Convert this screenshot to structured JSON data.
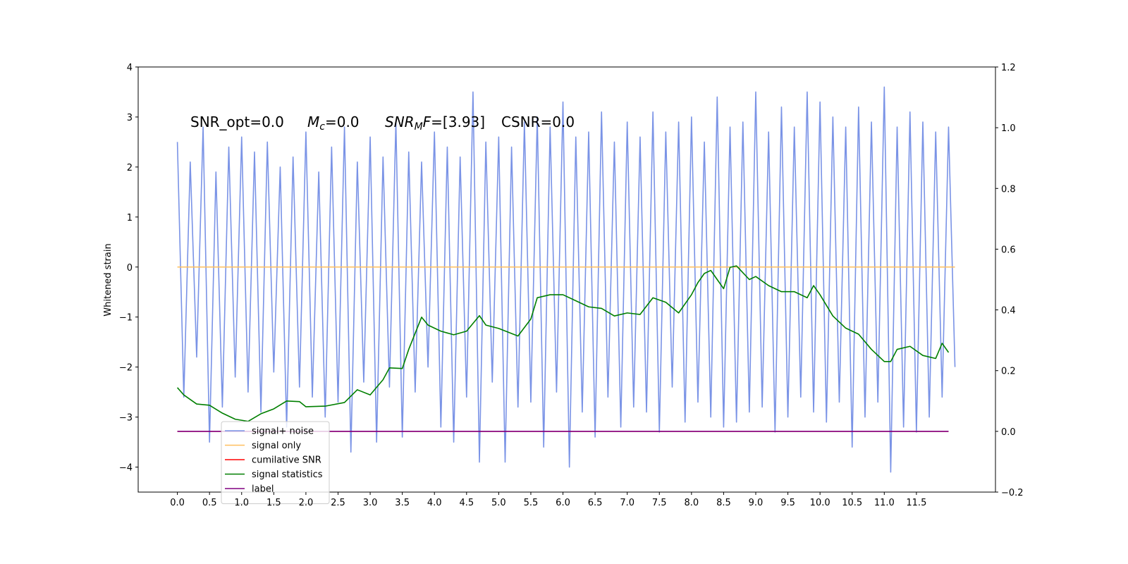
{
  "chart_data": {
    "type": "line",
    "ylabel": "Whitened strain",
    "annotations": [
      [
        {
          "text": "SNR_opt=0.0"
        }
      ],
      [
        {
          "text": "M",
          "italic": true
        },
        {
          "text": "c",
          "italic": true,
          "sub": true
        },
        {
          "text": "=0.0"
        }
      ],
      [
        {
          "text": "SNR",
          "italic": true
        },
        {
          "text": "M",
          "italic": true,
          "sub": true
        },
        {
          "text": "F",
          "italic": true
        },
        {
          "text": "=[3.93]"
        }
      ],
      [
        {
          "text": "CSNR=0.0"
        }
      ]
    ],
    "xlim": [
      -0.61,
      12.73
    ],
    "ylim": [
      -4.5,
      4
    ],
    "y2lim": [
      -0.2,
      1.2
    ],
    "xticks": [
      {
        "value": 0,
        "label": "0.0"
      },
      {
        "value": 0.5,
        "label": "0.5"
      },
      {
        "value": 1,
        "label": "1.0"
      },
      {
        "value": 1.5,
        "label": "1.5"
      },
      {
        "value": 2,
        "label": "2.0"
      },
      {
        "value": 2.5,
        "label": "2.5"
      },
      {
        "value": 3,
        "label": "3.0"
      },
      {
        "value": 3.5,
        "label": "3.5"
      },
      {
        "value": 4,
        "label": "4.0"
      },
      {
        "value": 4.5,
        "label": "4.5"
      },
      {
        "value": 5,
        "label": "5.0"
      },
      {
        "value": 5.5,
        "label": "5.5"
      },
      {
        "value": 6,
        "label": "6.0"
      },
      {
        "value": 6.5,
        "label": "6.5"
      },
      {
        "value": 7,
        "label": "7.0"
      },
      {
        "value": 7.5,
        "label": "7.5"
      },
      {
        "value": 8,
        "label": "8.0"
      },
      {
        "value": 8.5,
        "label": "8.5"
      },
      {
        "value": 9,
        "label": "9.0"
      },
      {
        "value": 9.5,
        "label": "9.5"
      },
      {
        "value": 10,
        "label": "10.0"
      },
      {
        "value": 10.5,
        "label": "10.5"
      },
      {
        "value": 11,
        "label": "11.0"
      },
      {
        "value": 11.5,
        "label": "11.5"
      }
    ],
    "yticks": [
      {
        "value": -4,
        "label": "−4"
      },
      {
        "value": -3,
        "label": "−3"
      },
      {
        "value": -2,
        "label": "−2"
      },
      {
        "value": -1,
        "label": "−1"
      },
      0,
      1,
      2,
      3,
      4
    ],
    "y2ticks": [
      {
        "value": -0.2,
        "label": "−0.2"
      },
      {
        "value": 0,
        "label": "0.0"
      },
      {
        "value": 0.2,
        "label": "0.2"
      },
      {
        "value": 0.4,
        "label": "0.4"
      },
      {
        "value": 0.6,
        "label": "0.6"
      },
      {
        "value": 0.8,
        "label": "0.8"
      },
      {
        "value": 1,
        "label": "1.0"
      },
      {
        "value": 1.2,
        "label": "1.2"
      }
    ],
    "legend": "lower left",
    "series": [
      {
        "name": "signal+ noise",
        "color": "#7a93e6",
        "x": [
          0,
          0.1,
          0.2,
          0.3,
          0.4,
          0.5,
          0.6,
          0.7,
          0.8,
          0.9,
          1,
          1.1,
          1.2,
          1.3,
          1.4,
          1.5,
          1.6,
          1.7,
          1.8,
          1.9,
          2,
          2.1,
          2.2,
          2.3,
          2.4,
          2.5,
          2.6,
          2.7,
          2.8,
          2.9,
          3,
          3.1,
          3.2,
          3.3,
          3.4,
          3.5,
          3.6,
          3.7,
          3.8,
          3.9,
          4,
          4.1,
          4.2,
          4.3,
          4.4,
          4.5,
          4.6,
          4.7,
          4.8,
          4.9,
          5,
          5.1,
          5.2,
          5.3,
          5.4,
          5.5,
          5.6,
          5.7,
          5.8,
          5.9,
          6,
          6.1,
          6.2,
          6.3,
          6.4,
          6.5,
          6.6,
          6.7,
          6.8,
          6.9,
          7,
          7.1,
          7.2,
          7.3,
          7.4,
          7.5,
          7.6,
          7.7,
          7.8,
          7.9,
          8,
          8.1,
          8.2,
          8.3,
          8.4,
          8.5,
          8.6,
          8.7,
          8.8,
          8.9,
          9,
          9.1,
          9.2,
          9.3,
          9.4,
          9.5,
          9.6,
          9.7,
          9.8,
          9.9,
          10,
          10.1,
          10.2,
          10.3,
          10.4,
          10.5,
          10.6,
          10.7,
          10.8,
          10.9,
          11,
          11.1,
          11.2,
          11.3,
          11.4,
          11.5,
          11.6,
          11.7,
          11.8,
          11.9,
          12,
          12.1
        ],
        "values": [
          2.5,
          -2.6,
          2.1,
          -1.8,
          2.8,
          -3.5,
          1.9,
          -2.8,
          2.4,
          -2.2,
          2.6,
          -2.5,
          2.3,
          -2.9,
          2.5,
          -2.1,
          2.0,
          -3.2,
          2.2,
          -2.4,
          2.7,
          -2.6,
          1.9,
          -3.0,
          2.4,
          -2.7,
          2.8,
          -3.7,
          2.1,
          -2.3,
          2.6,
          -3.5,
          2.2,
          -2.4,
          2.9,
          -3.4,
          2.3,
          -2.5,
          2.1,
          -2.0,
          2.7,
          -3.2,
          2.4,
          -3.5,
          2.2,
          -2.6,
          3.5,
          -3.9,
          2.5,
          -2.3,
          2.6,
          -3.9,
          2.4,
          -2.8,
          2.9,
          -2.7,
          3.0,
          -3.6,
          2.8,
          -2.5,
          3.3,
          -4.0,
          2.6,
          -2.9,
          2.7,
          -3.4,
          3.1,
          -2.6,
          2.5,
          -3.2,
          2.9,
          -2.8,
          2.6,
          -2.9,
          3.1,
          -3.3,
          2.7,
          -2.4,
          2.9,
          -3.1,
          3.0,
          -2.7,
          2.5,
          -3.0,
          3.4,
          -3.2,
          2.8,
          -3.1,
          2.9,
          -2.9,
          3.5,
          -2.8,
          2.7,
          -3.3,
          3.2,
          -3.0,
          2.8,
          -2.6,
          3.5,
          -2.9,
          3.3,
          -3.1,
          3.0,
          -2.7,
          2.8,
          -3.6,
          3.2,
          -3.0,
          2.9,
          -2.7,
          3.6,
          -4.1,
          2.8,
          -3.2,
          3.1,
          -3.3,
          2.9,
          -3.0,
          2.7,
          -2.6,
          2.8,
          -2.0
        ]
      },
      {
        "name": "signal only",
        "color": "#ffbf5e",
        "x": [
          0,
          12.1
        ],
        "values": [
          0,
          0
        ]
      },
      {
        "name": "cumilative SNR",
        "color": "#ff0000",
        "axis": "y2",
        "x": [
          0,
          12.0
        ],
        "values": [
          0,
          0
        ]
      },
      {
        "name": "signal statistics",
        "color": "#007f00",
        "axis": "y2",
        "x": [
          0,
          0.1,
          0.3,
          0.5,
          0.7,
          0.9,
          1.1,
          1.3,
          1.5,
          1.7,
          1.9,
          2.0,
          2.3,
          2.6,
          2.8,
          3.0,
          3.2,
          3.3,
          3.5,
          3.6,
          3.8,
          3.9,
          4.1,
          4.3,
          4.5,
          4.7,
          4.8,
          5.0,
          5.3,
          5.5,
          5.6,
          5.8,
          6.0,
          6.2,
          6.4,
          6.6,
          6.8,
          7.0,
          7.2,
          7.4,
          7.6,
          7.8,
          8.0,
          8.1,
          8.2,
          8.3,
          8.4,
          8.5,
          8.6,
          8.7,
          8.9,
          9.0,
          9.2,
          9.4,
          9.6,
          9.8,
          9.9,
          10.0,
          10.2,
          10.4,
          10.6,
          10.8,
          11.0,
          11.1,
          11.2,
          11.4,
          11.6,
          11.8,
          11.9,
          12.0
        ],
        "values": [
          0.144,
          0.12,
          0.09,
          0.086,
          0.06,
          0.04,
          0.033,
          0.058,
          0.074,
          0.1,
          0.098,
          0.081,
          0.083,
          0.095,
          0.137,
          0.12,
          0.17,
          0.209,
          0.207,
          0.27,
          0.376,
          0.35,
          0.33,
          0.318,
          0.33,
          0.381,
          0.35,
          0.339,
          0.314,
          0.37,
          0.44,
          0.45,
          0.45,
          0.43,
          0.41,
          0.405,
          0.38,
          0.39,
          0.385,
          0.44,
          0.425,
          0.39,
          0.45,
          0.49,
          0.52,
          0.53,
          0.5,
          0.47,
          0.54,
          0.545,
          0.5,
          0.51,
          0.48,
          0.46,
          0.46,
          0.44,
          0.48,
          0.45,
          0.38,
          0.34,
          0.32,
          0.27,
          0.23,
          0.23,
          0.27,
          0.28,
          0.25,
          0.24,
          0.29,
          0.26
        ]
      },
      {
        "name": "label",
        "color": "#800080",
        "axis": "y2",
        "x": [
          0,
          12.0
        ],
        "values": [
          0,
          0
        ]
      }
    ]
  }
}
